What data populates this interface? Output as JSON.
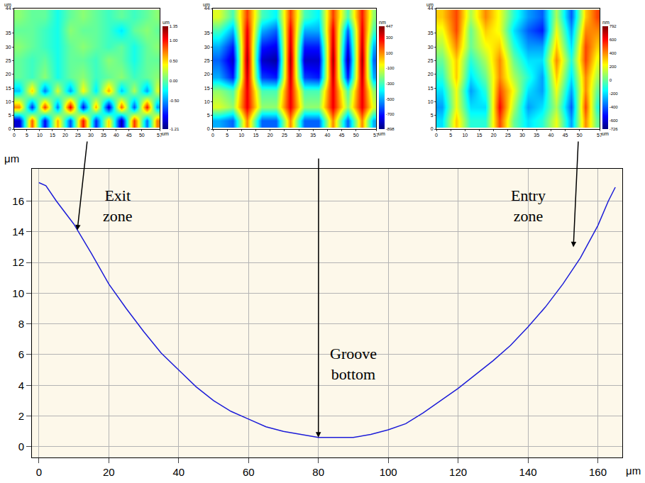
{
  "chart_data": [
    {
      "type": "heatmap",
      "x": [
        2,
        7,
        12,
        17,
        22,
        27,
        32,
        37,
        42,
        47,
        52,
        56
      ],
      "y": [
        3,
        8,
        14,
        19,
        25,
        30,
        36,
        41
      ],
      "z": [
        [
          -1.0,
          0.8,
          -0.9,
          0.6,
          -0.7,
          1.0,
          -0.8,
          0.5,
          -1.1,
          0.9,
          -0.6,
          0.7
        ],
        [
          0.7,
          -0.8,
          0.9,
          -0.6,
          1.1,
          -0.9,
          0.6,
          -1.0,
          0.8,
          -0.7,
          1.0,
          -0.5
        ],
        [
          -0.4,
          0.5,
          -0.6,
          0.3,
          -0.5,
          0.4,
          -0.3,
          0.6,
          -0.4,
          0.2,
          -0.5,
          0.3
        ],
        [
          0.0,
          -0.1,
          0.1,
          -0.2,
          0.0,
          0.1,
          -0.1,
          0.0,
          0.1,
          -0.1,
          0.0,
          0.1
        ],
        [
          0.0,
          -0.1,
          0.0,
          -0.2,
          0.0,
          0.0,
          -0.1,
          0.1,
          0.0,
          -0.2,
          0.0,
          0.0
        ],
        [
          0.1,
          0.0,
          -0.1,
          -0.2,
          0.0,
          0.1,
          0.0,
          -0.1,
          0.0,
          -0.2,
          0.0,
          0.1
        ],
        [
          0.0,
          0.0,
          -0.1,
          -0.2,
          0.1,
          0.0,
          0.0,
          -0.1,
          -0.3,
          0.0,
          0.1,
          0.0
        ],
        [
          0.1,
          0.0,
          0.0,
          -0.2,
          0.0,
          0.1,
          0.0,
          -0.1,
          0.0,
          -0.1,
          0.0,
          0.1
        ]
      ],
      "xlim": [
        0,
        57
      ],
      "ylim": [
        0,
        44
      ],
      "xticks": [
        0,
        5,
        10,
        15,
        20,
        25,
        30,
        35,
        40,
        45,
        50,
        57
      ],
      "yticks": [
        0,
        5,
        10,
        15,
        20,
        25,
        30,
        35,
        44
      ],
      "x_label": "um",
      "y_label": "um",
      "colorbar_label": "um",
      "colorbar_range": [
        -1.21,
        1.35
      ],
      "colorbar_ticks": [
        1.35,
        {
          "value": 1,
          "label": "1.00"
        },
        {
          "value": 0.5,
          "label": "0.50"
        },
        {
          "value": 0,
          "label": "0.00"
        },
        {
          "value": -0.5,
          "label": "-0.50"
        },
        -1.21
      ]
    },
    {
      "type": "heatmap",
      "x": [
        2,
        7,
        12,
        17,
        22,
        27,
        32,
        37,
        42,
        47,
        52,
        56
      ],
      "y": [
        3,
        8,
        14,
        19,
        25,
        30,
        36,
        41
      ],
      "z": [
        [
          -500,
          -600,
          100,
          -600,
          -600,
          100,
          -600,
          -600,
          100,
          -600,
          100,
          -500
        ],
        [
          -100,
          -200,
          300,
          -200,
          -200,
          300,
          -200,
          -200,
          300,
          -200,
          300,
          -100
        ],
        [
          -200,
          -300,
          300,
          -300,
          -300,
          300,
          -300,
          -300,
          300,
          -300,
          300,
          -200
        ],
        [
          -500,
          -700,
          350,
          -650,
          -700,
          350,
          -650,
          -700,
          350,
          -700,
          350,
          -500
        ],
        [
          -600,
          -800,
          400,
          -800,
          -850,
          400,
          -800,
          -800,
          400,
          -850,
          400,
          -600
        ],
        [
          -500,
          -700,
          350,
          -700,
          -750,
          350,
          -700,
          -700,
          350,
          -750,
          350,
          -500
        ],
        [
          -300,
          -500,
          300,
          -500,
          -600,
          300,
          -500,
          -500,
          300,
          -600,
          300,
          -300
        ],
        [
          -100,
          -300,
          200,
          -300,
          -400,
          200,
          -300,
          -400,
          200,
          -300,
          250,
          -200
        ]
      ],
      "xlim": [
        0,
        57
      ],
      "ylim": [
        0,
        44
      ],
      "xticks": [
        0,
        5,
        10,
        15,
        20,
        25,
        30,
        35,
        40,
        45,
        50,
        57
      ],
      "yticks": [
        0,
        5,
        10,
        15,
        20,
        25,
        30,
        35,
        44
      ],
      "x_label": "um",
      "y_label": "um",
      "colorbar_label": "nm",
      "colorbar_range": [
        -898,
        447
      ],
      "colorbar_ticks": [
        447,
        300,
        100,
        -100,
        -300,
        -500,
        -700,
        -898
      ]
    },
    {
      "type": "heatmap",
      "x": [
        2,
        7,
        12,
        17,
        22,
        27,
        32,
        37,
        42,
        47,
        52,
        56
      ],
      "y": [
        3,
        8,
        14,
        19,
        25,
        30,
        36,
        41
      ],
      "z": [
        [
          -200,
          300,
          -100,
          -100,
          500,
          0,
          -200,
          -100,
          200,
          -300,
          400,
          0
        ],
        [
          -300,
          200,
          -200,
          -200,
          600,
          100,
          -300,
          -200,
          100,
          -400,
          500,
          -100
        ],
        [
          -200,
          200,
          -300,
          -100,
          500,
          200,
          -200,
          -300,
          200,
          -300,
          400,
          0
        ],
        [
          -100,
          300,
          -200,
          0,
          400,
          100,
          -100,
          -300,
          300,
          -200,
          400,
          100
        ],
        [
          0,
          300,
          -100,
          100,
          400,
          0,
          -200,
          -200,
          400,
          -100,
          500,
          200
        ],
        [
          100,
          400,
          0,
          200,
          300,
          -100,
          -300,
          -300,
          300,
          -200,
          500,
          300
        ],
        [
          200,
          500,
          0,
          300,
          200,
          -200,
          -400,
          -500,
          200,
          -300,
          400,
          400
        ],
        [
          300,
          500,
          100,
          400,
          200,
          -100,
          -300,
          -400,
          100,
          -400,
          300,
          500
        ]
      ],
      "xlim": [
        0,
        57
      ],
      "ylim": [
        0,
        44
      ],
      "xticks": [
        0,
        5,
        10,
        15,
        20,
        25,
        30,
        35,
        40,
        45,
        50,
        57
      ],
      "yticks": [
        0,
        5,
        10,
        15,
        20,
        25,
        30,
        35,
        44
      ],
      "x_label": "um",
      "y_label": "um",
      "colorbar_label": "nm",
      "colorbar_range": [
        -726,
        792
      ],
      "colorbar_ticks": [
        792,
        600,
        400,
        200,
        0,
        -200,
        -400,
        -600,
        -726
      ]
    },
    {
      "type": "line",
      "x": [
        0,
        2,
        5,
        10,
        15,
        20,
        25,
        30,
        35,
        40,
        45,
        50,
        55,
        60,
        65,
        70,
        75,
        80,
        85,
        90,
        95,
        100,
        105,
        110,
        115,
        120,
        125,
        130,
        135,
        140,
        145,
        150,
        155,
        160,
        163,
        165
      ],
      "values": [
        17.2,
        17.0,
        16.0,
        14.5,
        12.6,
        10.6,
        9.0,
        7.5,
        6.1,
        5.0,
        3.9,
        3.0,
        2.3,
        1.8,
        1.3,
        1.0,
        0.8,
        0.6,
        0.6,
        0.6,
        0.8,
        1.1,
        1.5,
        2.2,
        3.0,
        3.8,
        4.7,
        5.6,
        6.6,
        7.8,
        9.1,
        10.6,
        12.3,
        14.4,
        16.0,
        16.9
      ],
      "color": "#1c1cd8",
      "xlim": [
        -2,
        167
      ],
      "ylim": [
        -0.7,
        18.1
      ],
      "xticks": [
        0,
        20,
        40,
        60,
        80,
        100,
        120,
        140,
        160
      ],
      "yticks": [
        0,
        2,
        4,
        6,
        8,
        10,
        12,
        14,
        16
      ],
      "x_label": "μm",
      "y_label": "μm",
      "grid": true,
      "annotations": [
        {
          "text": "Exit zone",
          "x": 22.5,
          "y": 15.7,
          "arrow_x": 11,
          "arrow_y": 14.1
        },
        {
          "text": "Groove bottom",
          "x": 90,
          "y": 5.4,
          "arrow_x": 80,
          "arrow_y": 0.6
        },
        {
          "text": "Entry zone",
          "x": 140,
          "y": 15.7,
          "arrow_x": 153,
          "arrow_y": 13.0
        }
      ]
    }
  ]
}
